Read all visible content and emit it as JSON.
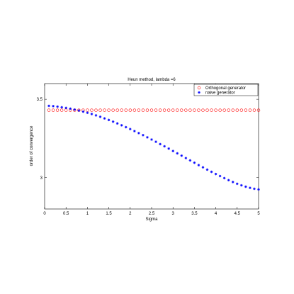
{
  "chart_data": {
    "type": "scatter",
    "title": "Heun method, lambda =6",
    "xlabel": "Sigma",
    "ylabel": "order of convergence",
    "xlim": [
      0,
      5
    ],
    "ylim": [
      2.8,
      3.6
    ],
    "xticks": [
      "0",
      "0.5",
      "1",
      "1.5",
      "2",
      "2.5",
      "3",
      "3.5",
      "4",
      "4.5",
      "5"
    ],
    "yticks": [
      "3",
      "3.5"
    ],
    "legend_position": "top-right",
    "grid": false,
    "series": [
      {
        "name": "Orthogonal generator",
        "marker": "circle",
        "color": "#ff0000",
        "x": [
          0.1,
          0.2,
          0.3,
          0.4,
          0.5,
          0.6,
          0.7,
          0.8,
          0.9,
          1.0,
          1.1,
          1.2,
          1.3,
          1.4,
          1.5,
          1.6,
          1.7,
          1.8,
          1.9,
          2.0,
          2.1,
          2.2,
          2.3,
          2.4,
          2.5,
          2.6,
          2.7,
          2.8,
          2.9,
          3.0,
          3.1,
          3.2,
          3.3,
          3.4,
          3.5,
          3.6,
          3.7,
          3.8,
          3.9,
          4.0,
          4.1,
          4.2,
          4.3,
          4.4,
          4.5,
          4.6,
          4.7,
          4.8,
          4.9,
          5.0
        ],
        "y": [
          3.43,
          3.43,
          3.43,
          3.43,
          3.43,
          3.43,
          3.43,
          3.43,
          3.43,
          3.43,
          3.43,
          3.43,
          3.43,
          3.43,
          3.43,
          3.43,
          3.43,
          3.43,
          3.43,
          3.43,
          3.43,
          3.43,
          3.43,
          3.43,
          3.43,
          3.43,
          3.43,
          3.43,
          3.43,
          3.43,
          3.43,
          3.43,
          3.43,
          3.43,
          3.43,
          3.43,
          3.43,
          3.43,
          3.43,
          3.43,
          3.43,
          3.43,
          3.43,
          3.43,
          3.43,
          3.43,
          3.43,
          3.43,
          3.43,
          3.43
        ]
      },
      {
        "name": "naive generator",
        "marker": "star",
        "color": "#0000ff",
        "x": [
          0.1,
          0.2,
          0.3,
          0.4,
          0.5,
          0.6,
          0.7,
          0.8,
          0.9,
          1.0,
          1.1,
          1.2,
          1.3,
          1.4,
          1.5,
          1.6,
          1.7,
          1.8,
          1.9,
          2.0,
          2.1,
          2.2,
          2.3,
          2.4,
          2.5,
          2.6,
          2.7,
          2.8,
          2.9,
          3.0,
          3.1,
          3.2,
          3.3,
          3.4,
          3.5,
          3.6,
          3.7,
          3.8,
          3.9,
          4.0,
          4.1,
          4.2,
          4.3,
          4.4,
          4.5,
          4.6,
          4.7,
          4.8,
          4.9,
          5.0
        ],
        "y": [
          3.458,
          3.456,
          3.453,
          3.449,
          3.445,
          3.44,
          3.434,
          3.428,
          3.421,
          3.414,
          3.406,
          3.397,
          3.388,
          3.378,
          3.368,
          3.357,
          3.346,
          3.334,
          3.322,
          3.31,
          3.297,
          3.284,
          3.271,
          3.257,
          3.243,
          3.229,
          3.214,
          3.2,
          3.185,
          3.17,
          3.155,
          3.14,
          3.125,
          3.11,
          3.095,
          3.08,
          3.066,
          3.051,
          3.037,
          3.023,
          3.01,
          2.997,
          2.984,
          2.972,
          2.961,
          2.951,
          2.942,
          2.935,
          2.929,
          2.925
        ]
      }
    ]
  }
}
